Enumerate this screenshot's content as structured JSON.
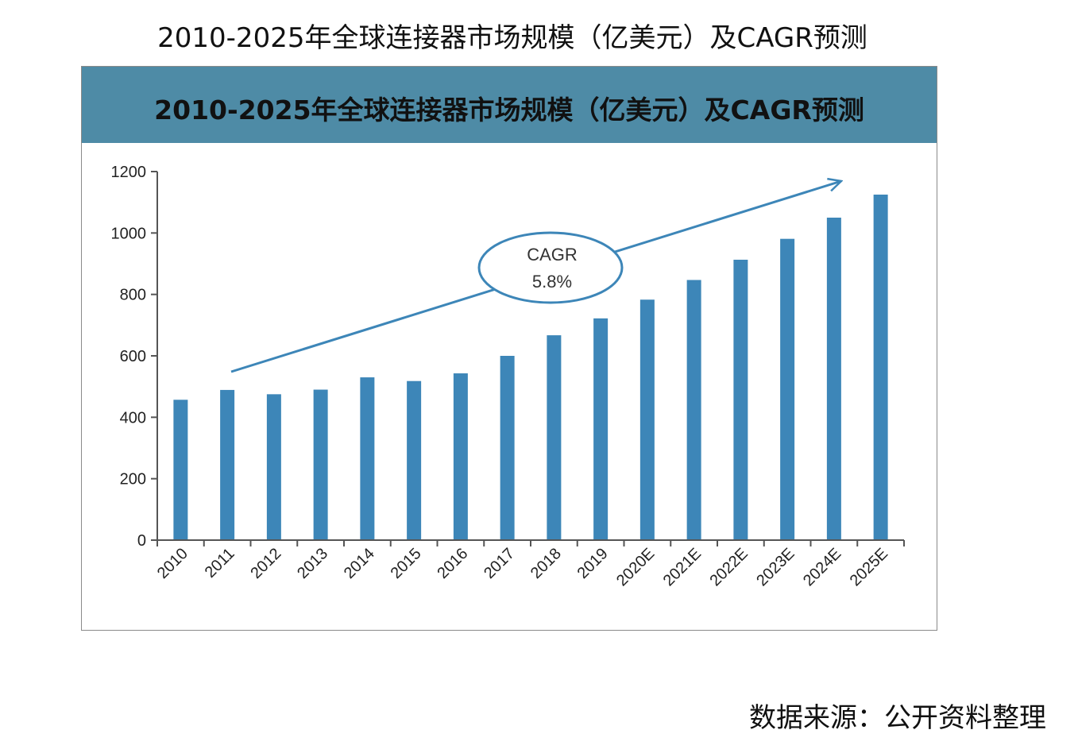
{
  "page": {
    "title": "2010-2025年全球连接器市场规模（亿美元）及CAGR预测",
    "source": "数据来源：公开资料整理"
  },
  "chart_data": {
    "type": "bar",
    "title": "2010-2025年全球连接器市场规模（亿美元）及CAGR预测",
    "xlabel": "",
    "ylabel": "",
    "categories": [
      "2010",
      "2011",
      "2012",
      "2013",
      "2014",
      "2015",
      "2016",
      "2017",
      "2018",
      "2019",
      "2020E",
      "2021E",
      "2022E",
      "2023E",
      "2024E",
      "2025E"
    ],
    "values": [
      457,
      489,
      475,
      490,
      530,
      518,
      543,
      600,
      667,
      722,
      783,
      847,
      913,
      981,
      1050,
      1125
    ],
    "ylim": [
      0,
      1200
    ],
    "yticks": [
      0,
      200,
      400,
      600,
      800,
      1000,
      1200
    ],
    "grid": false,
    "legend": "none",
    "bar_color": "#3d86b8",
    "header_color": "#4e8ba6",
    "annotation": {
      "label": "CAGR",
      "value": "5.8%",
      "arrow_color": "#3d86b8"
    }
  }
}
